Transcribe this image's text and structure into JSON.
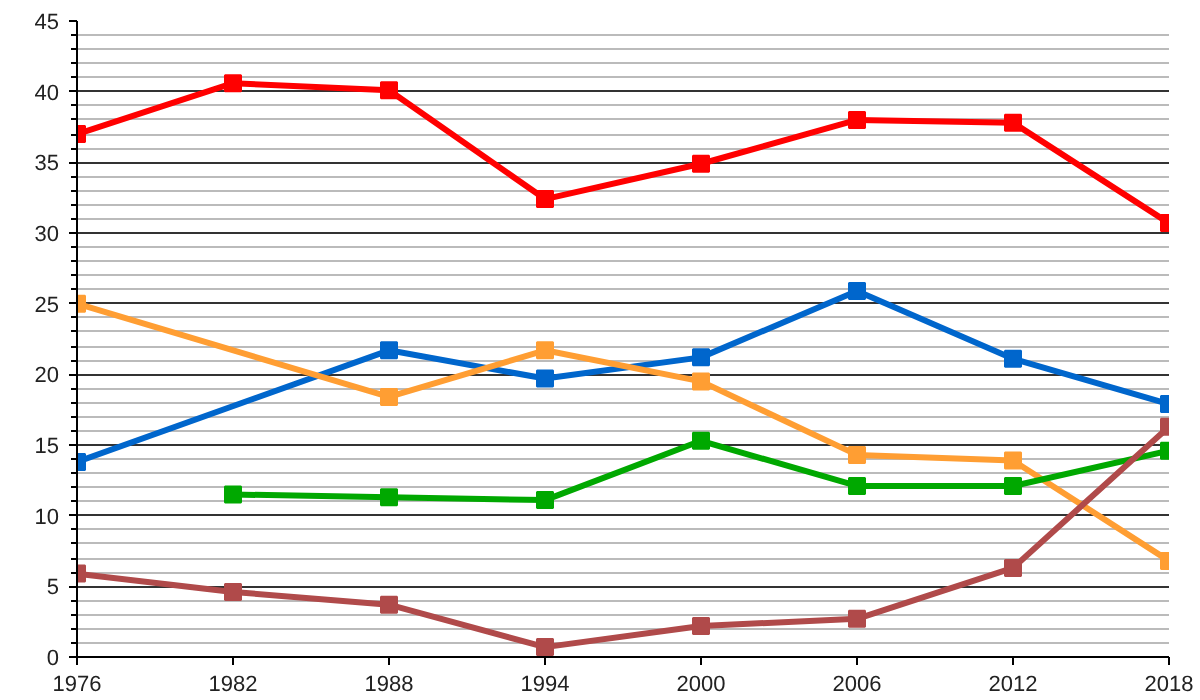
{
  "chart_data": {
    "type": "line",
    "marker": "square",
    "line_style": "solid",
    "grid": "y",
    "x": [
      1976,
      1982,
      1988,
      1994,
      2000,
      2006,
      2012,
      2018
    ],
    "xlim": [
      1976,
      2018
    ],
    "xticks": [
      1976,
      1982,
      1988,
      1994,
      2000,
      2006,
      2012,
      2018
    ],
    "ylim": [
      0,
      45
    ],
    "yticks": [
      0,
      {
        "value": 1,
        "label": null
      },
      {
        "value": 2,
        "label": null
      },
      {
        "value": 3,
        "label": null
      },
      {
        "value": 4,
        "label": null
      },
      5,
      {
        "value": 6,
        "label": null
      },
      {
        "value": 7,
        "label": null
      },
      {
        "value": 8,
        "label": null
      },
      {
        "value": 9,
        "label": null
      },
      10,
      {
        "value": 11,
        "label": null
      },
      {
        "value": 12,
        "label": null
      },
      {
        "value": 13,
        "label": null
      },
      {
        "value": 14,
        "label": null
      },
      15,
      {
        "value": 16,
        "label": null
      },
      {
        "value": 17,
        "label": null
      },
      {
        "value": 18,
        "label": null
      },
      {
        "value": 19,
        "label": null
      },
      20,
      {
        "value": 21,
        "label": null
      },
      {
        "value": 22,
        "label": null
      },
      {
        "value": 23,
        "label": null
      },
      {
        "value": 24,
        "label": null
      },
      25,
      {
        "value": 26,
        "label": null
      },
      {
        "value": 27,
        "label": null
      },
      {
        "value": 28,
        "label": null
      },
      {
        "value": 29,
        "label": null
      },
      30,
      {
        "value": 31,
        "label": null
      },
      {
        "value": 32,
        "label": null
      },
      {
        "value": 33,
        "label": null
      },
      {
        "value": 34,
        "label": null
      },
      35,
      {
        "value": 36,
        "label": null
      },
      {
        "value": 37,
        "label": null
      },
      {
        "value": 38,
        "label": null
      },
      {
        "value": 39,
        "label": null
      },
      40,
      {
        "value": 41,
        "label": null
      },
      {
        "value": 42,
        "label": null
      },
      {
        "value": 43,
        "label": null
      },
      {
        "value": 44,
        "label": null
      },
      45
    ],
    "series": [
      {
        "color": "#ff0000",
        "values": [
          37.0,
          40.6,
          40.1,
          32.4,
          34.9,
          38.0,
          37.8,
          30.7
        ]
      },
      {
        "color": "#0066cc",
        "x": [
          1976,
          1988,
          1994,
          2000,
          2006,
          2012,
          2018
        ],
        "values": [
          13.8,
          21.7,
          19.7,
          21.2,
          25.9,
          21.1,
          17.9
        ]
      },
      {
        "color": "#ff9e33",
        "x": [
          1976,
          1988,
          1994,
          2000,
          2006,
          2012,
          2018
        ],
        "values": [
          25.0,
          18.4,
          21.7,
          19.5,
          14.3,
          13.9,
          6.8
        ]
      },
      {
        "color": "#00a800",
        "x": [
          1982,
          1988,
          1994,
          2000,
          2006,
          2012,
          2018
        ],
        "values": [
          11.5,
          11.3,
          11.1,
          15.3,
          12.1,
          12.1,
          14.6
        ]
      },
      {
        "color": "#b04a4a",
        "values": [
          5.9,
          4.6,
          3.7,
          0.7,
          2.2,
          2.7,
          6.3,
          16.3
        ]
      }
    ]
  }
}
